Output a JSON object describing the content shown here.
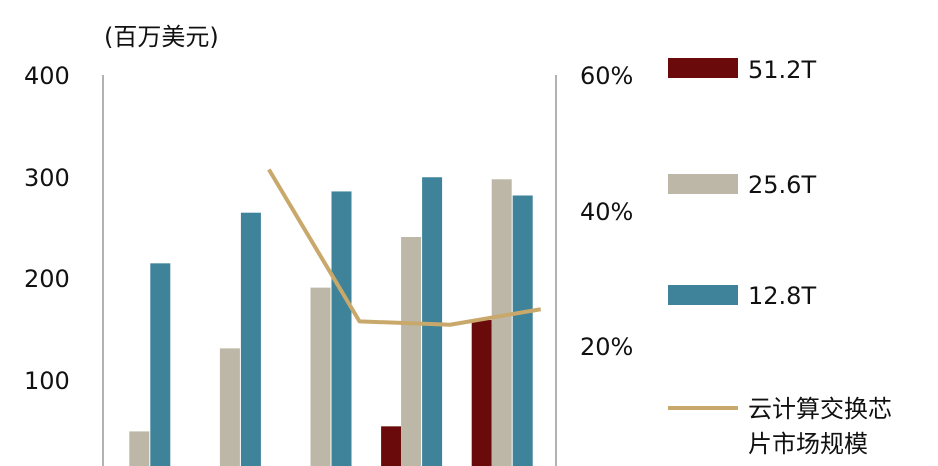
{
  "chart_data": {
    "type": "bar",
    "unit_label": "(百万美元)",
    "categories": [
      "",
      "",
      "",
      "",
      ""
    ],
    "series": [
      {
        "name": "51.2T",
        "kind": "bar",
        "axis": "left",
        "color": "#6b0a0a",
        "values": [
          0,
          0,
          0,
          53,
          158
        ]
      },
      {
        "name": "25.6T",
        "kind": "bar",
        "axis": "left",
        "color": "#bcb7a6",
        "values": [
          48,
          130,
          190,
          240,
          297
        ]
      },
      {
        "name": "12.8T",
        "kind": "bar",
        "axis": "left",
        "color": "#3e8399",
        "values": [
          214,
          264,
          285,
          299,
          281
        ]
      },
      {
        "name": "云计算交换芯\n片市场规模",
        "kind": "line",
        "axis": "right",
        "color": "#c8a86b",
        "values": [
          null,
          0.46,
          0.235,
          0.23,
          0.253
        ]
      }
    ],
    "y_left": {
      "ylim": [
        0,
        400
      ],
      "ticks": [
        "400",
        "300",
        "200",
        "100"
      ]
    },
    "y_right": {
      "ylim": [
        0,
        0.6
      ],
      "ticks": [
        "60%",
        "40%",
        "20%"
      ]
    },
    "legend": {
      "position": "right",
      "items": [
        "51.2T",
        "25.6T",
        "12.8T",
        "云计算交换芯",
        "片市场规模"
      ]
    },
    "grid": false
  }
}
